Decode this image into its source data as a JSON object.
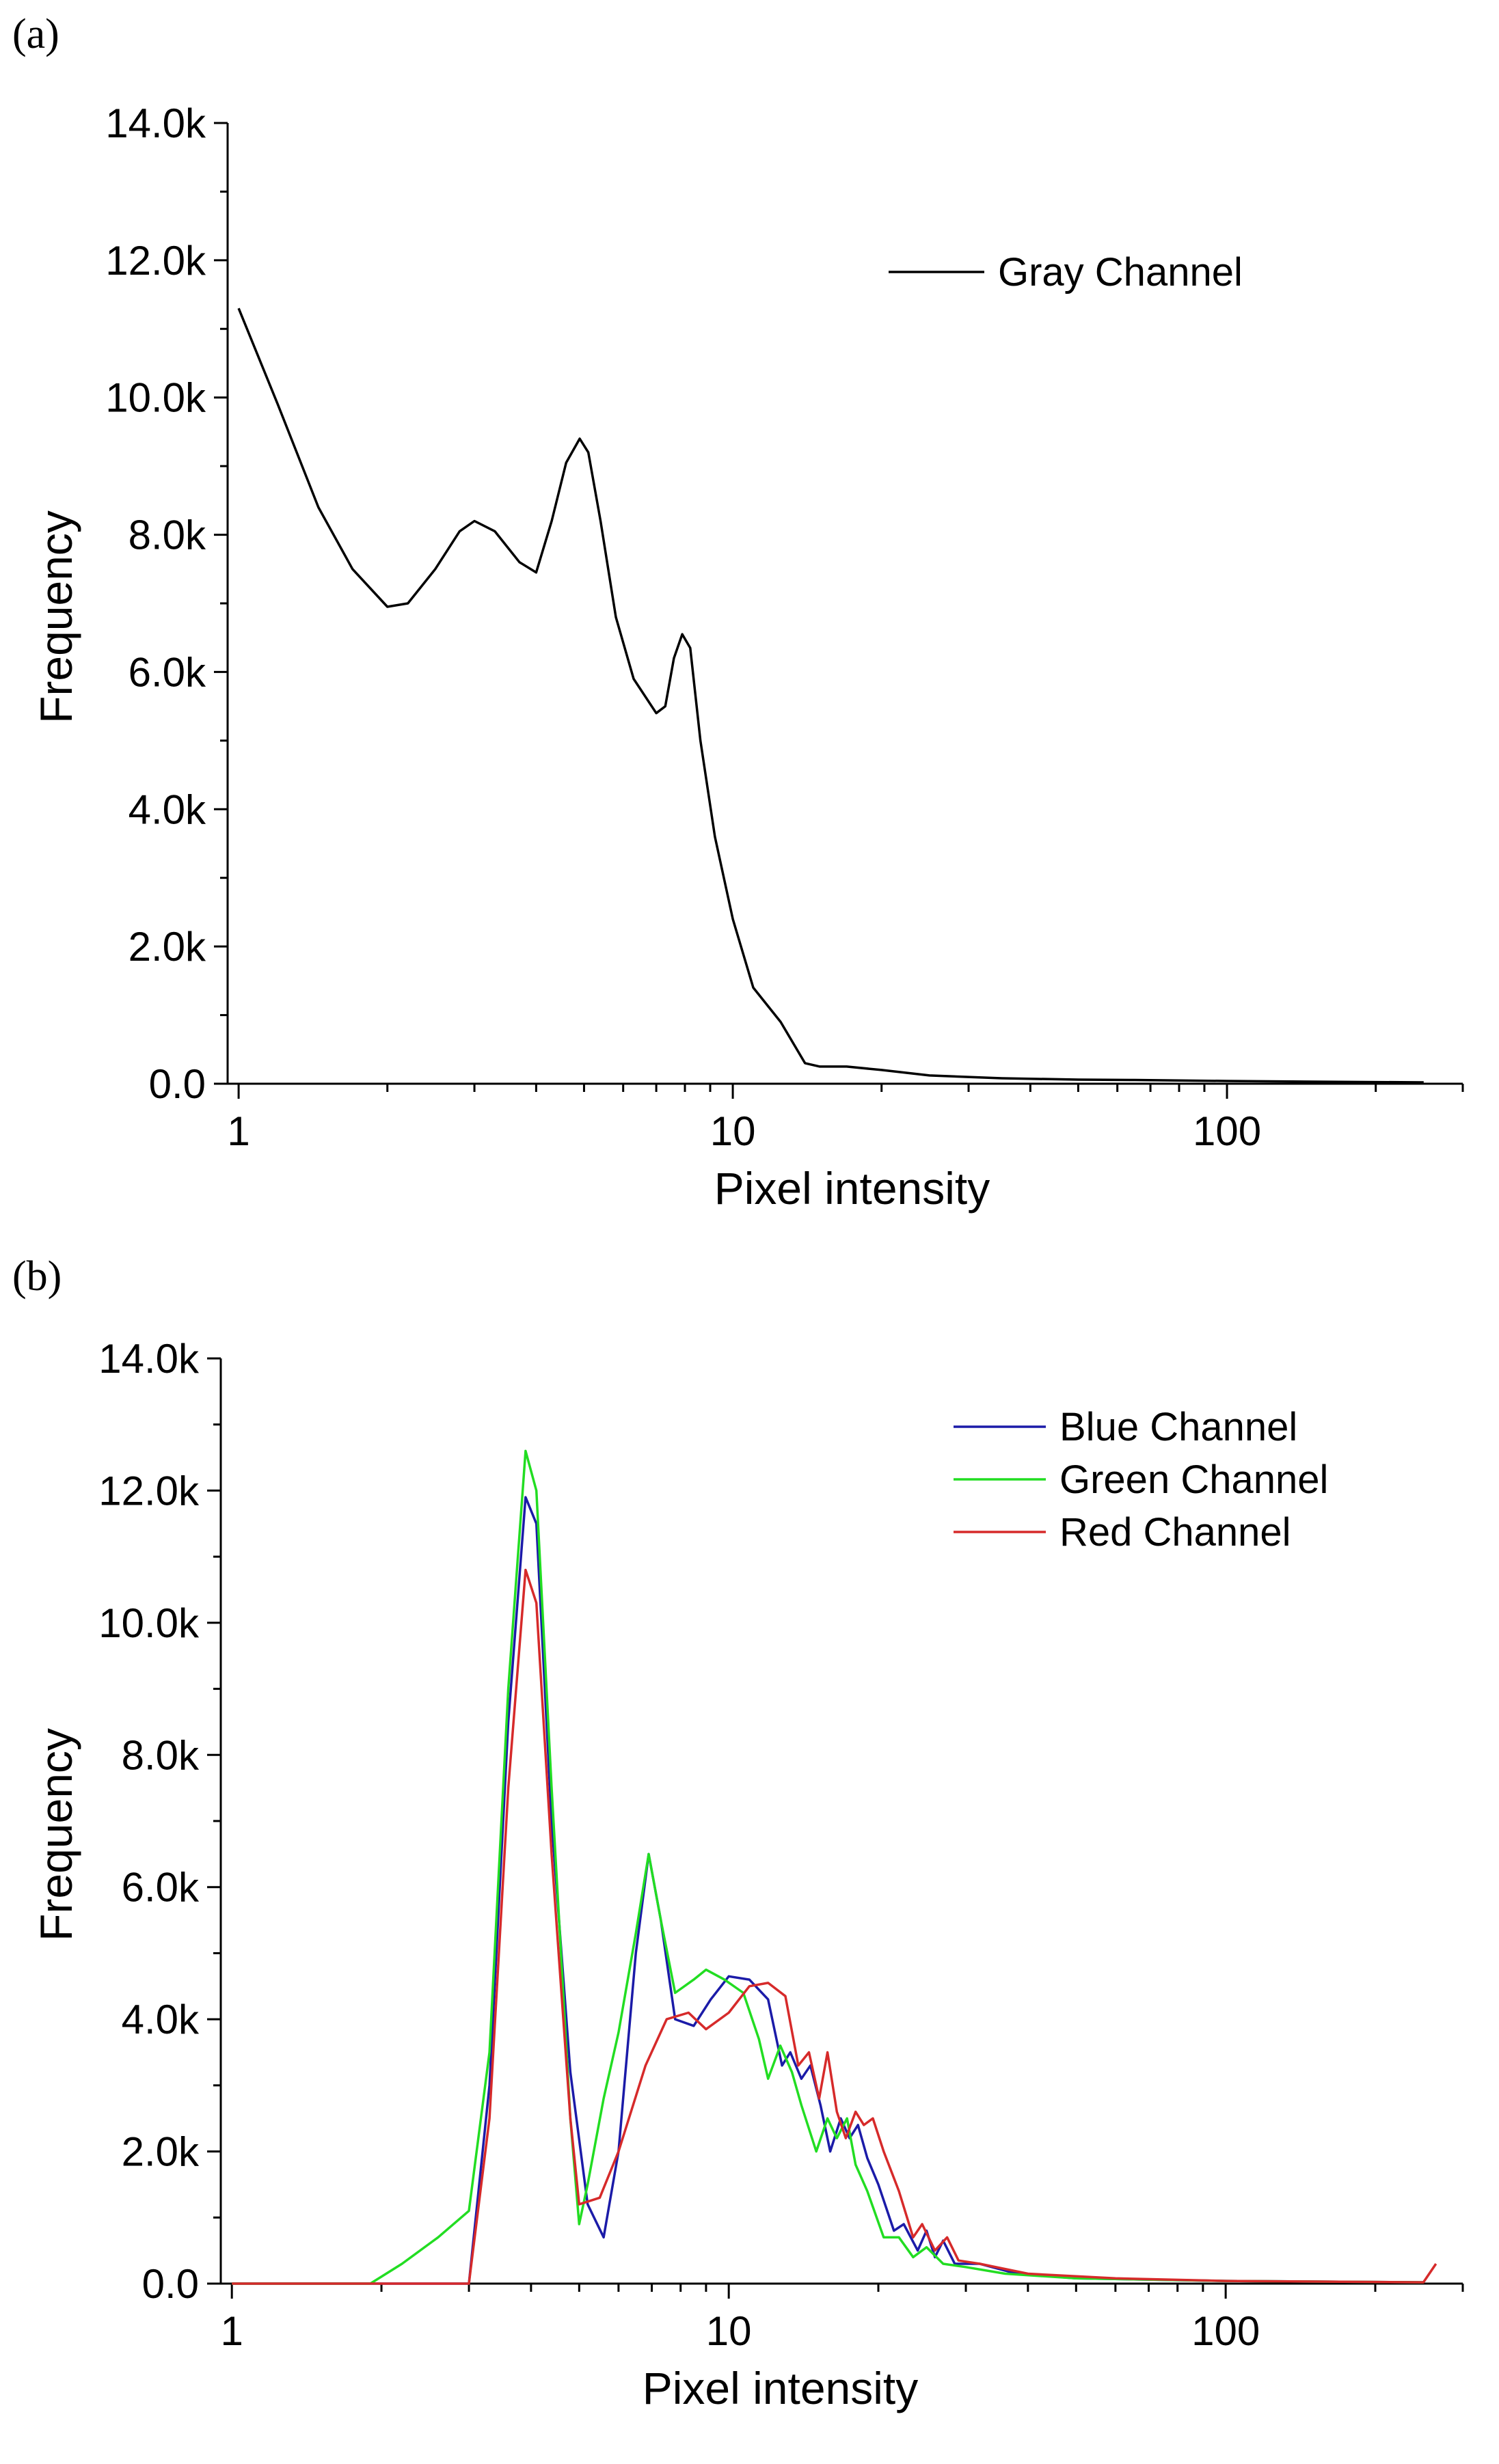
{
  "figure": {
    "panel_a_label": "(a)",
    "panel_b_label": "(b)"
  },
  "chart_data": [
    {
      "panel": "a",
      "type": "line",
      "xscale": "log",
      "xlabel": "Pixel intensity",
      "ylabel": "Frequency",
      "xlim": [
        0.95,
        300
      ],
      "ylim": [
        0,
        14000
      ],
      "yticks": [
        0,
        2000,
        4000,
        6000,
        8000,
        10000,
        12000,
        14000
      ],
      "ytick_labels": [
        "0.0",
        "2.0k",
        "4.0k",
        "6.0k",
        "8.0k",
        "10.0k",
        "12.0k",
        "14.0k"
      ],
      "xticks": [
        1,
        10,
        100
      ],
      "xtick_labels": [
        "1",
        "10",
        "100"
      ],
      "legend_position": "top-right",
      "series": [
        {
          "name": "Gray Channel",
          "color": "#000000",
          "points": [
            [
              1.0,
              11300
            ],
            [
              1.2,
              9900
            ],
            [
              1.45,
              8400
            ],
            [
              1.7,
              7500
            ],
            [
              2.0,
              6950
            ],
            [
              2.2,
              7000
            ],
            [
              2.5,
              7500
            ],
            [
              2.8,
              8050
            ],
            [
              3.0,
              8200
            ],
            [
              3.3,
              8050
            ],
            [
              3.7,
              7600
            ],
            [
              4.0,
              7450
            ],
            [
              4.3,
              8200
            ],
            [
              4.6,
              9050
            ],
            [
              4.9,
              9400
            ],
            [
              5.1,
              9200
            ],
            [
              5.4,
              8200
            ],
            [
              5.8,
              6800
            ],
            [
              6.3,
              5900
            ],
            [
              7.0,
              5400
            ],
            [
              7.3,
              5500
            ],
            [
              7.6,
              6200
            ],
            [
              7.9,
              6550
            ],
            [
              8.2,
              6350
            ],
            [
              8.6,
              5000
            ],
            [
              9.2,
              3600
            ],
            [
              10.0,
              2400
            ],
            [
              11.0,
              1400
            ],
            [
              12.5,
              900
            ],
            [
              14.0,
              300
            ],
            [
              15.0,
              250
            ],
            [
              17.0,
              250
            ],
            [
              20.0,
              200
            ],
            [
              25.0,
              120
            ],
            [
              35.0,
              80
            ],
            [
              50.0,
              60
            ],
            [
              65.0,
              55
            ],
            [
              100.0,
              40
            ],
            [
              150.0,
              30
            ],
            [
              250.0,
              20
            ]
          ]
        }
      ]
    },
    {
      "panel": "b",
      "type": "line",
      "xscale": "log",
      "xlabel": "Pixel intensity",
      "ylabel": "Frequency",
      "xlim": [
        0.95,
        300
      ],
      "ylim": [
        0,
        14000
      ],
      "yticks": [
        0,
        2000,
        4000,
        6000,
        8000,
        10000,
        12000,
        14000
      ],
      "ytick_labels": [
        "0.0",
        "2.0k",
        "4.0k",
        "6.0k",
        "8.0k",
        "10.0k",
        "12.0k",
        "14.0k"
      ],
      "xticks": [
        1,
        10,
        100
      ],
      "xtick_labels": [
        "1",
        "10",
        "100"
      ],
      "legend_position": "top-right",
      "series": [
        {
          "name": "Blue Channel",
          "color": "#1b1ba8",
          "points": [
            [
              1.0,
              0
            ],
            [
              2.0,
              0
            ],
            [
              3.0,
              0
            ],
            [
              3.3,
              3000
            ],
            [
              3.6,
              8500
            ],
            [
              3.9,
              11900
            ],
            [
              4.1,
              11500
            ],
            [
              4.4,
              7000
            ],
            [
              4.8,
              3200
            ],
            [
              5.2,
              1200
            ],
            [
              5.6,
              700
            ],
            [
              6.0,
              2000
            ],
            [
              6.5,
              5000
            ],
            [
              6.9,
              6500
            ],
            [
              7.3,
              5500
            ],
            [
              7.8,
              4000
            ],
            [
              8.5,
              3900
            ],
            [
              9.2,
              4300
            ],
            [
              10.0,
              4650
            ],
            [
              11.0,
              4600
            ],
            [
              12.0,
              4300
            ],
            [
              12.8,
              3300
            ],
            [
              13.3,
              3500
            ],
            [
              14.0,
              3100
            ],
            [
              14.6,
              3300
            ],
            [
              15.3,
              2700
            ],
            [
              16.0,
              2000
            ],
            [
              16.8,
              2500
            ],
            [
              17.5,
              2200
            ],
            [
              18.2,
              2400
            ],
            [
              19.0,
              1900
            ],
            [
              20.0,
              1500
            ],
            [
              21.5,
              800
            ],
            [
              22.5,
              900
            ],
            [
              24.0,
              500
            ],
            [
              25.0,
              800
            ],
            [
              26.0,
              400
            ],
            [
              27.0,
              650
            ],
            [
              28.5,
              300
            ],
            [
              32.0,
              300
            ],
            [
              38.0,
              150
            ],
            [
              50.0,
              80
            ],
            [
              100.0,
              40
            ],
            [
              250.0,
              20
            ]
          ]
        },
        {
          "name": "Green Channel",
          "color": "#22dd22",
          "points": [
            [
              1.0,
              0
            ],
            [
              1.9,
              0
            ],
            [
              2.2,
              300
            ],
            [
              2.6,
              700
            ],
            [
              3.0,
              1100
            ],
            [
              3.3,
              3500
            ],
            [
              3.6,
              9000
            ],
            [
              3.9,
              12600
            ],
            [
              4.1,
              12000
            ],
            [
              4.4,
              7500
            ],
            [
              4.8,
              2500
            ],
            [
              5.0,
              900
            ],
            [
              5.2,
              1500
            ],
            [
              5.6,
              2800
            ],
            [
              6.0,
              3800
            ],
            [
              6.5,
              5300
            ],
            [
              6.9,
              6500
            ],
            [
              7.3,
              5500
            ],
            [
              7.8,
              4400
            ],
            [
              8.5,
              4600
            ],
            [
              9.0,
              4750
            ],
            [
              9.8,
              4600
            ],
            [
              10.7,
              4400
            ],
            [
              11.5,
              3700
            ],
            [
              12.0,
              3100
            ],
            [
              12.7,
              3600
            ],
            [
              13.4,
              3200
            ],
            [
              14.0,
              2700
            ],
            [
              15.0,
              2000
            ],
            [
              15.8,
              2500
            ],
            [
              16.5,
              2200
            ],
            [
              17.3,
              2500
            ],
            [
              18.0,
              1800
            ],
            [
              19.0,
              1400
            ],
            [
              20.5,
              700
            ],
            [
              22.0,
              700
            ],
            [
              23.5,
              400
            ],
            [
              25.0,
              550
            ],
            [
              27.0,
              300
            ],
            [
              30.0,
              250
            ],
            [
              36.0,
              150
            ],
            [
              50.0,
              80
            ],
            [
              100.0,
              40
            ],
            [
              250.0,
              20
            ]
          ]
        },
        {
          "name": "Red Channel",
          "color": "#d62a2a",
          "points": [
            [
              1.0,
              0
            ],
            [
              2.0,
              0
            ],
            [
              3.0,
              0
            ],
            [
              3.3,
              2500
            ],
            [
              3.6,
              7500
            ],
            [
              3.9,
              10800
            ],
            [
              4.1,
              10300
            ],
            [
              4.4,
              6500
            ],
            [
              4.8,
              2500
            ],
            [
              5.0,
              1200
            ],
            [
              5.5,
              1300
            ],
            [
              6.0,
              2000
            ],
            [
              6.8,
              3300
            ],
            [
              7.5,
              4000
            ],
            [
              8.3,
              4100
            ],
            [
              9.0,
              3850
            ],
            [
              10.0,
              4100
            ],
            [
              11.0,
              4500
            ],
            [
              12.0,
              4550
            ],
            [
              13.0,
              4350
            ],
            [
              13.8,
              3300
            ],
            [
              14.5,
              3500
            ],
            [
              15.2,
              2800
            ],
            [
              15.8,
              3500
            ],
            [
              16.5,
              2600
            ],
            [
              17.2,
              2200
            ],
            [
              18.0,
              2600
            ],
            [
              18.7,
              2400
            ],
            [
              19.5,
              2500
            ],
            [
              20.5,
              2000
            ],
            [
              22.0,
              1400
            ],
            [
              23.5,
              700
            ],
            [
              24.5,
              900
            ],
            [
              26.0,
              500
            ],
            [
              27.5,
              700
            ],
            [
              29.0,
              350
            ],
            [
              32.0,
              300
            ],
            [
              40.0,
              150
            ],
            [
              60.0,
              80
            ],
            [
              100.0,
              40
            ],
            [
              250.0,
              20
            ],
            [
              265.0,
              300
            ]
          ]
        }
      ]
    }
  ]
}
